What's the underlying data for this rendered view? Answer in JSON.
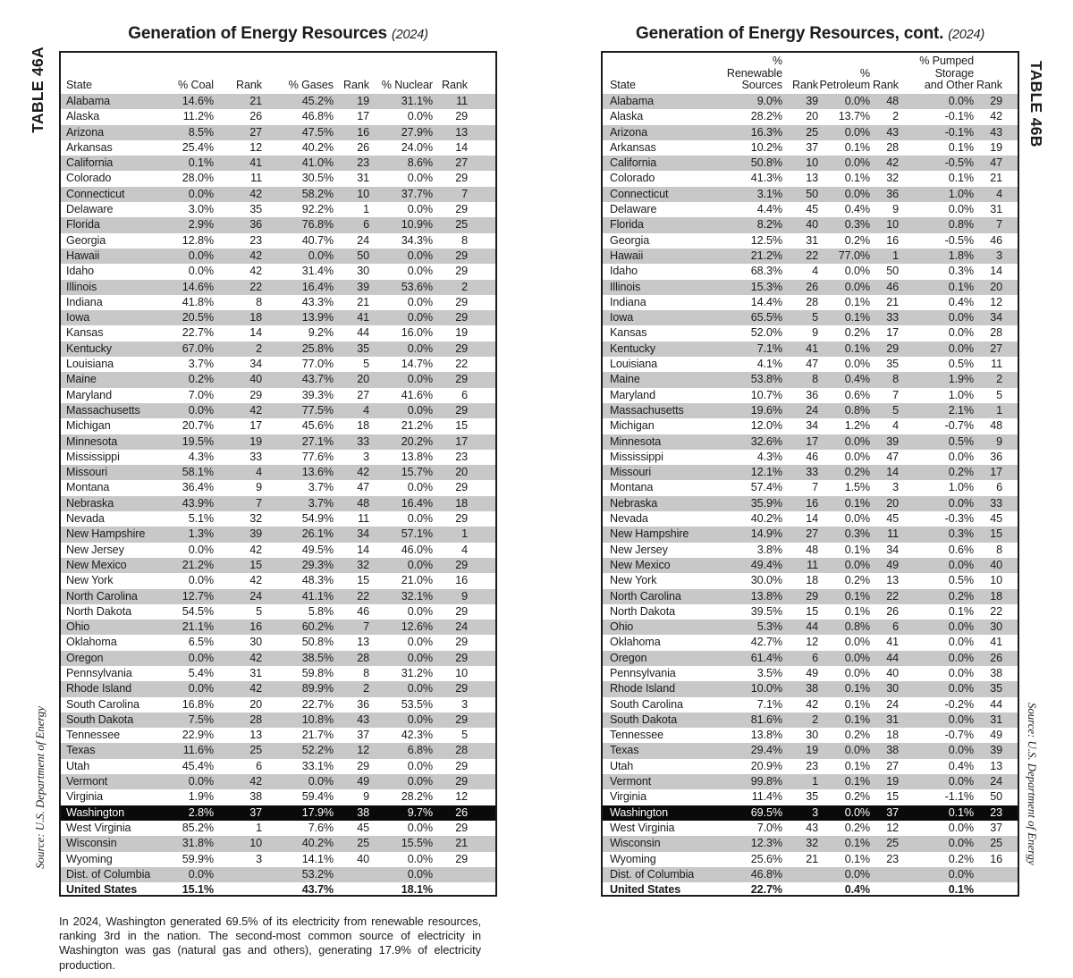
{
  "colors": {
    "stripe": "#c8c8c8",
    "highlight_bg": "#0a0a0a",
    "highlight_fg": "#ffffff",
    "border": "#1b1b1b"
  },
  "table_a": {
    "side_label": "TABLE 46A",
    "title": "Generation of Energy Resources",
    "title_year": "(2024)",
    "source": "Source: U.S. Department of Energy",
    "highlight_state": "Washington",
    "total_label": "United States",
    "header": [
      {
        "lines": [
          "State"
        ]
      },
      {
        "lines": [
          "% Coal"
        ]
      },
      {
        "lines": [
          "Rank"
        ]
      },
      {
        "lines": [
          "% Gases"
        ]
      },
      {
        "lines": [
          "Rank"
        ]
      },
      {
        "lines": [
          "% Nuclear"
        ]
      },
      {
        "lines": [
          "Rank"
        ]
      }
    ],
    "rows": [
      [
        "Alabama",
        "14.6%",
        "21",
        "45.2%",
        "19",
        "31.1%",
        "11"
      ],
      [
        "Alaska",
        "11.2%",
        "26",
        "46.8%",
        "17",
        "0.0%",
        "29"
      ],
      [
        "Arizona",
        "8.5%",
        "27",
        "47.5%",
        "16",
        "27.9%",
        "13"
      ],
      [
        "Arkansas",
        "25.4%",
        "12",
        "40.2%",
        "26",
        "24.0%",
        "14"
      ],
      [
        "California",
        "0.1%",
        "41",
        "41.0%",
        "23",
        "8.6%",
        "27"
      ],
      [
        "Colorado",
        "28.0%",
        "11",
        "30.5%",
        "31",
        "0.0%",
        "29"
      ],
      [
        "Connecticut",
        "0.0%",
        "42",
        "58.2%",
        "10",
        "37.7%",
        "7"
      ],
      [
        "Delaware",
        "3.0%",
        "35",
        "92.2%",
        "1",
        "0.0%",
        "29"
      ],
      [
        "Florida",
        "2.9%",
        "36",
        "76.8%",
        "6",
        "10.9%",
        "25"
      ],
      [
        "Georgia",
        "12.8%",
        "23",
        "40.7%",
        "24",
        "34.3%",
        "8"
      ],
      [
        "Hawaii",
        "0.0%",
        "42",
        "0.0%",
        "50",
        "0.0%",
        "29"
      ],
      [
        "Idaho",
        "0.0%",
        "42",
        "31.4%",
        "30",
        "0.0%",
        "29"
      ],
      [
        "Illinois",
        "14.6%",
        "22",
        "16.4%",
        "39",
        "53.6%",
        "2"
      ],
      [
        "Indiana",
        "41.8%",
        "8",
        "43.3%",
        "21",
        "0.0%",
        "29"
      ],
      [
        "Iowa",
        "20.5%",
        "18",
        "13.9%",
        "41",
        "0.0%",
        "29"
      ],
      [
        "Kansas",
        "22.7%",
        "14",
        "9.2%",
        "44",
        "16.0%",
        "19"
      ],
      [
        "Kentucky",
        "67.0%",
        "2",
        "25.8%",
        "35",
        "0.0%",
        "29"
      ],
      [
        "Louisiana",
        "3.7%",
        "34",
        "77.0%",
        "5",
        "14.7%",
        "22"
      ],
      [
        "Maine",
        "0.2%",
        "40",
        "43.7%",
        "20",
        "0.0%",
        "29"
      ],
      [
        "Maryland",
        "7.0%",
        "29",
        "39.3%",
        "27",
        "41.6%",
        "6"
      ],
      [
        "Massachusetts",
        "0.0%",
        "42",
        "77.5%",
        "4",
        "0.0%",
        "29"
      ],
      [
        "Michigan",
        "20.7%",
        "17",
        "45.6%",
        "18",
        "21.2%",
        "15"
      ],
      [
        "Minnesota",
        "19.5%",
        "19",
        "27.1%",
        "33",
        "20.2%",
        "17"
      ],
      [
        "Mississippi",
        "4.3%",
        "33",
        "77.6%",
        "3",
        "13.8%",
        "23"
      ],
      [
        "Missouri",
        "58.1%",
        "4",
        "13.6%",
        "42",
        "15.7%",
        "20"
      ],
      [
        "Montana",
        "36.4%",
        "9",
        "3.7%",
        "47",
        "0.0%",
        "29"
      ],
      [
        "Nebraska",
        "43.9%",
        "7",
        "3.7%",
        "48",
        "16.4%",
        "18"
      ],
      [
        "Nevada",
        "5.1%",
        "32",
        "54.9%",
        "11",
        "0.0%",
        "29"
      ],
      [
        "New Hampshire",
        "1.3%",
        "39",
        "26.1%",
        "34",
        "57.1%",
        "1"
      ],
      [
        "New Jersey",
        "0.0%",
        "42",
        "49.5%",
        "14",
        "46.0%",
        "4"
      ],
      [
        "New Mexico",
        "21.2%",
        "15",
        "29.3%",
        "32",
        "0.0%",
        "29"
      ],
      [
        "New York",
        "0.0%",
        "42",
        "48.3%",
        "15",
        "21.0%",
        "16"
      ],
      [
        "North Carolina",
        "12.7%",
        "24",
        "41.1%",
        "22",
        "32.1%",
        "9"
      ],
      [
        "North Dakota",
        "54.5%",
        "5",
        "5.8%",
        "46",
        "0.0%",
        "29"
      ],
      [
        "Ohio",
        "21.1%",
        "16",
        "60.2%",
        "7",
        "12.6%",
        "24"
      ],
      [
        "Oklahoma",
        "6.5%",
        "30",
        "50.8%",
        "13",
        "0.0%",
        "29"
      ],
      [
        "Oregon",
        "0.0%",
        "42",
        "38.5%",
        "28",
        "0.0%",
        "29"
      ],
      [
        "Pennsylvania",
        "5.4%",
        "31",
        "59.8%",
        "8",
        "31.2%",
        "10"
      ],
      [
        "Rhode Island",
        "0.0%",
        "42",
        "89.9%",
        "2",
        "0.0%",
        "29"
      ],
      [
        "South Carolina",
        "16.8%",
        "20",
        "22.7%",
        "36",
        "53.5%",
        "3"
      ],
      [
        "South Dakota",
        "7.5%",
        "28",
        "10.8%",
        "43",
        "0.0%",
        "29"
      ],
      [
        "Tennessee",
        "22.9%",
        "13",
        "21.7%",
        "37",
        "42.3%",
        "5"
      ],
      [
        "Texas",
        "11.6%",
        "25",
        "52.2%",
        "12",
        "6.8%",
        "28"
      ],
      [
        "Utah",
        "45.4%",
        "6",
        "33.1%",
        "29",
        "0.0%",
        "29"
      ],
      [
        "Vermont",
        "0.0%",
        "42",
        "0.0%",
        "49",
        "0.0%",
        "29"
      ],
      [
        "Virginia",
        "1.9%",
        "38",
        "59.4%",
        "9",
        "28.2%",
        "12"
      ],
      [
        "Washington",
        "2.8%",
        "37",
        "17.9%",
        "38",
        "9.7%",
        "26"
      ],
      [
        "West Virginia",
        "85.2%",
        "1",
        "7.6%",
        "45",
        "0.0%",
        "29"
      ],
      [
        "Wisconsin",
        "31.8%",
        "10",
        "40.2%",
        "25",
        "15.5%",
        "21"
      ],
      [
        "Wyoming",
        "59.9%",
        "3",
        "14.1%",
        "40",
        "0.0%",
        "29"
      ],
      [
        "Dist. of Columbia",
        "0.0%",
        "",
        "53.2%",
        "",
        "0.0%",
        ""
      ],
      [
        "United States",
        "15.1%",
        "",
        "43.7%",
        "",
        "18.1%",
        ""
      ]
    ],
    "footnote": "In 2024, Washington generated 69.5% of its electricity from renewable resources, ranking 3rd in the nation. The second-most common source of electricity in Washington was gas (natural gas and others), generating 17.9% of electricity production."
  },
  "table_b": {
    "side_label": "TABLE 46B",
    "title": "Generation of Energy Resources, cont.",
    "title_year": "(2024)",
    "source": "Source: U.S. Department of Energy",
    "highlight_state": "Washington",
    "total_label": "United States",
    "header": [
      {
        "lines": [
          "State"
        ]
      },
      {
        "lines": [
          "%",
          "Renewable",
          "Sources"
        ]
      },
      {
        "lines": [
          "Rank"
        ]
      },
      {
        "lines": [
          "%",
          "Petroleum"
        ]
      },
      {
        "lines": [
          "Rank"
        ]
      },
      {
        "lines": [
          "% Pumped",
          "Storage",
          "and Other"
        ]
      },
      {
        "lines": [
          "Rank"
        ]
      }
    ],
    "rows": [
      [
        "Alabama",
        "9.0%",
        "39",
        "0.0%",
        "48",
        "0.0%",
        "29"
      ],
      [
        "Alaska",
        "28.2%",
        "20",
        "13.7%",
        "2",
        "-0.1%",
        "42"
      ],
      [
        "Arizona",
        "16.3%",
        "25",
        "0.0%",
        "43",
        "-0.1%",
        "43"
      ],
      [
        "Arkansas",
        "10.2%",
        "37",
        "0.1%",
        "28",
        "0.1%",
        "19"
      ],
      [
        "California",
        "50.8%",
        "10",
        "0.0%",
        "42",
        "-0.5%",
        "47"
      ],
      [
        "Colorado",
        "41.3%",
        "13",
        "0.1%",
        "32",
        "0.1%",
        "21"
      ],
      [
        "Connecticut",
        "3.1%",
        "50",
        "0.0%",
        "36",
        "1.0%",
        "4"
      ],
      [
        "Delaware",
        "4.4%",
        "45",
        "0.4%",
        "9",
        "0.0%",
        "31"
      ],
      [
        "Florida",
        "8.2%",
        "40",
        "0.3%",
        "10",
        "0.8%",
        "7"
      ],
      [
        "Georgia",
        "12.5%",
        "31",
        "0.2%",
        "16",
        "-0.5%",
        "46"
      ],
      [
        "Hawaii",
        "21.2%",
        "22",
        "77.0%",
        "1",
        "1.8%",
        "3"
      ],
      [
        "Idaho",
        "68.3%",
        "4",
        "0.0%",
        "50",
        "0.3%",
        "14"
      ],
      [
        "Illinois",
        "15.3%",
        "26",
        "0.0%",
        "46",
        "0.1%",
        "20"
      ],
      [
        "Indiana",
        "14.4%",
        "28",
        "0.1%",
        "21",
        "0.4%",
        "12"
      ],
      [
        "Iowa",
        "65.5%",
        "5",
        "0.1%",
        "33",
        "0.0%",
        "34"
      ],
      [
        "Kansas",
        "52.0%",
        "9",
        "0.2%",
        "17",
        "0.0%",
        "28"
      ],
      [
        "Kentucky",
        "7.1%",
        "41",
        "0.1%",
        "29",
        "0.0%",
        "27"
      ],
      [
        "Louisiana",
        "4.1%",
        "47",
        "0.0%",
        "35",
        "0.5%",
        "11"
      ],
      [
        "Maine",
        "53.8%",
        "8",
        "0.4%",
        "8",
        "1.9%",
        "2"
      ],
      [
        "Maryland",
        "10.7%",
        "36",
        "0.6%",
        "7",
        "1.0%",
        "5"
      ],
      [
        "Massachusetts",
        "19.6%",
        "24",
        "0.8%",
        "5",
        "2.1%",
        "1"
      ],
      [
        "Michigan",
        "12.0%",
        "34",
        "1.2%",
        "4",
        "-0.7%",
        "48"
      ],
      [
        "Minnesota",
        "32.6%",
        "17",
        "0.0%",
        "39",
        "0.5%",
        "9"
      ],
      [
        "Mississippi",
        "4.3%",
        "46",
        "0.0%",
        "47",
        "0.0%",
        "36"
      ],
      [
        "Missouri",
        "12.1%",
        "33",
        "0.2%",
        "14",
        "0.2%",
        "17"
      ],
      [
        "Montana",
        "57.4%",
        "7",
        "1.5%",
        "3",
        "1.0%",
        "6"
      ],
      [
        "Nebraska",
        "35.9%",
        "16",
        "0.1%",
        "20",
        "0.0%",
        "33"
      ],
      [
        "Nevada",
        "40.2%",
        "14",
        "0.0%",
        "45",
        "-0.3%",
        "45"
      ],
      [
        "New Hampshire",
        "14.9%",
        "27",
        "0.3%",
        "11",
        "0.3%",
        "15"
      ],
      [
        "New Jersey",
        "3.8%",
        "48",
        "0.1%",
        "34",
        "0.6%",
        "8"
      ],
      [
        "New Mexico",
        "49.4%",
        "11",
        "0.0%",
        "49",
        "0.0%",
        "40"
      ],
      [
        "New York",
        "30.0%",
        "18",
        "0.2%",
        "13",
        "0.5%",
        "10"
      ],
      [
        "North Carolina",
        "13.8%",
        "29",
        "0.1%",
        "22",
        "0.2%",
        "18"
      ],
      [
        "North Dakota",
        "39.5%",
        "15",
        "0.1%",
        "26",
        "0.1%",
        "22"
      ],
      [
        "Ohio",
        "5.3%",
        "44",
        "0.8%",
        "6",
        "0.0%",
        "30"
      ],
      [
        "Oklahoma",
        "42.7%",
        "12",
        "0.0%",
        "41",
        "0.0%",
        "41"
      ],
      [
        "Oregon",
        "61.4%",
        "6",
        "0.0%",
        "44",
        "0.0%",
        "26"
      ],
      [
        "Pennsylvania",
        "3.5%",
        "49",
        "0.0%",
        "40",
        "0.0%",
        "38"
      ],
      [
        "Rhode Island",
        "10.0%",
        "38",
        "0.1%",
        "30",
        "0.0%",
        "35"
      ],
      [
        "South Carolina",
        "7.1%",
        "42",
        "0.1%",
        "24",
        "-0.2%",
        "44"
      ],
      [
        "South Dakota",
        "81.6%",
        "2",
        "0.1%",
        "31",
        "0.0%",
        "31"
      ],
      [
        "Tennessee",
        "13.8%",
        "30",
        "0.2%",
        "18",
        "-0.7%",
        "49"
      ],
      [
        "Texas",
        "29.4%",
        "19",
        "0.0%",
        "38",
        "0.0%",
        "39"
      ],
      [
        "Utah",
        "20.9%",
        "23",
        "0.1%",
        "27",
        "0.4%",
        "13"
      ],
      [
        "Vermont",
        "99.8%",
        "1",
        "0.1%",
        "19",
        "0.0%",
        "24"
      ],
      [
        "Virginia",
        "11.4%",
        "35",
        "0.2%",
        "15",
        "-1.1%",
        "50"
      ],
      [
        "Washington",
        "69.5%",
        "3",
        "0.0%",
        "37",
        "0.1%",
        "23"
      ],
      [
        "West Virginia",
        "7.0%",
        "43",
        "0.2%",
        "12",
        "0.0%",
        "37"
      ],
      [
        "Wisconsin",
        "12.3%",
        "32",
        "0.1%",
        "25",
        "0.0%",
        "25"
      ],
      [
        "Wyoming",
        "25.6%",
        "21",
        "0.1%",
        "23",
        "0.2%",
        "16"
      ],
      [
        "Dist. of Columbia",
        "46.8%",
        "",
        "0.0%",
        "",
        "0.0%",
        ""
      ],
      [
        "United States",
        "22.7%",
        "",
        "0.4%",
        "",
        "0.1%",
        ""
      ]
    ]
  }
}
